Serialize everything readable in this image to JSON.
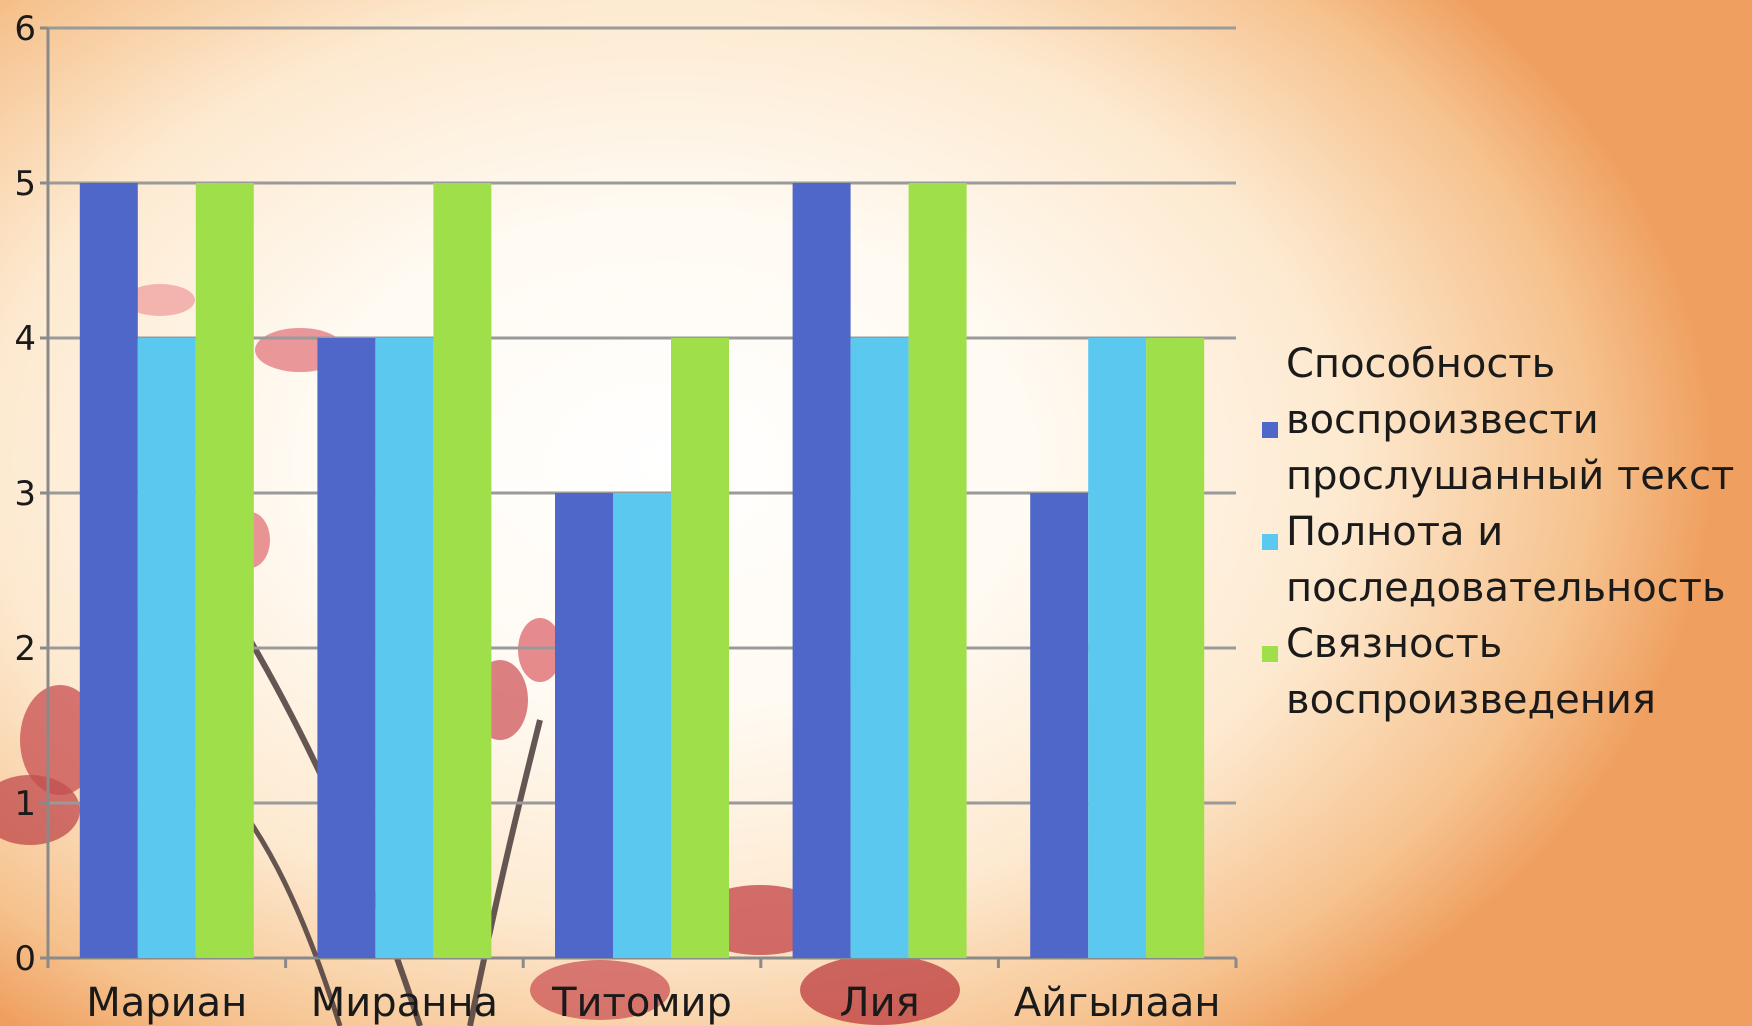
{
  "chart_data": {
    "type": "bar",
    "categories": [
      "Мариан",
      "Миранна",
      "Титомир",
      "Лия",
      "Айгылаан"
    ],
    "series": [
      {
        "name": "Способность воспроизвести прослушанный текст",
        "values": [
          5,
          4,
          3,
          5,
          3
        ],
        "color": "#4f67c8"
      },
      {
        "name": "Полнота и последовательность",
        "values": [
          4,
          4,
          3,
          4,
          4
        ],
        "color": "#5bc8f0"
      },
      {
        "name": "Связность воспроизведения",
        "values": [
          5,
          5,
          4,
          5,
          4
        ],
        "color": "#9fe04a"
      }
    ],
    "yticks": [
      "0",
      "1",
      "2",
      "3",
      "4",
      "5",
      "6"
    ],
    "ylim": [
      0,
      6
    ],
    "grid": true,
    "legend_position": "right",
    "legend": [
      {
        "lines": [
          "Способность",
          "воспроизвести",
          "прослушанный текст"
        ]
      },
      {
        "lines": [
          "Полнота и",
          "последовательность"
        ]
      },
      {
        "lines": [
          "Связность",
          "воспроизведения"
        ]
      }
    ]
  }
}
